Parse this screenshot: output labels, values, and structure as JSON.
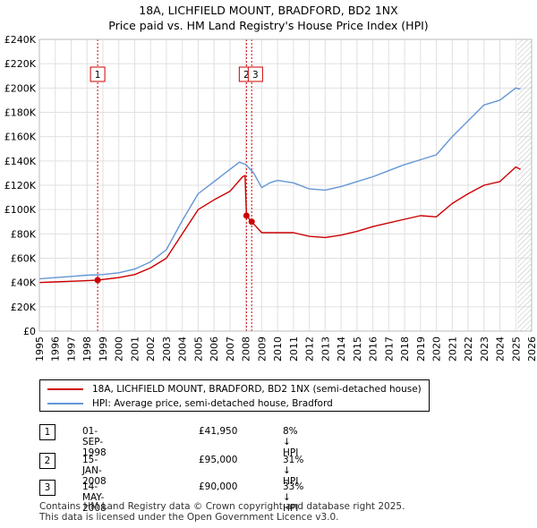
{
  "title_line1": "18A, LICHFIELD MOUNT, BRADFORD, BD2 1NX",
  "title_line2": "Price paid vs. HM Land Registry's House Price Index (HPI)",
  "colors": {
    "property": "#cc0000",
    "hpi": "#6495d6",
    "grid": "#e0e0e0",
    "hatch": "#bbbbbb",
    "marker_line": "#cc0000"
  },
  "chart_data": {
    "type": "line",
    "ylim": [
      0,
      240000
    ],
    "xlim": [
      1995,
      2026
    ],
    "y_ticks": [
      {
        "v": 0,
        "label": "£0"
      },
      {
        "v": 20000,
        "label": "£20K"
      },
      {
        "v": 40000,
        "label": "£40K"
      },
      {
        "v": 60000,
        "label": "£60K"
      },
      {
        "v": 80000,
        "label": "£80K"
      },
      {
        "v": 100000,
        "label": "£100K"
      },
      {
        "v": 120000,
        "label": "£120K"
      },
      {
        "v": 140000,
        "label": "£140K"
      },
      {
        "v": 160000,
        "label": "£160K"
      },
      {
        "v": 180000,
        "label": "£180K"
      },
      {
        "v": 200000,
        "label": "£200K"
      },
      {
        "v": 220000,
        "label": "£220K"
      },
      {
        "v": 240000,
        "label": "£240K"
      }
    ],
    "x_ticks": [
      "1995",
      "1996",
      "1997",
      "1998",
      "1999",
      "2000",
      "2001",
      "2002",
      "2003",
      "2004",
      "2005",
      "2006",
      "2007",
      "2008",
      "2009",
      "2010",
      "2011",
      "2012",
      "2013",
      "2014",
      "2015",
      "2016",
      "2017",
      "2018",
      "2019",
      "2020",
      "2021",
      "2022",
      "2023",
      "2024",
      "2025",
      "2026"
    ],
    "hatch_from": 2025.1,
    "series": [
      {
        "name": "18A, LICHFIELD MOUNT, BRADFORD, BD2 1NX (semi-detached house)",
        "color": "#cc0000",
        "points": [
          [
            1995.0,
            40000
          ],
          [
            1996.0,
            40500
          ],
          [
            1997.0,
            41000
          ],
          [
            1998.0,
            41500
          ],
          [
            1998.67,
            41950
          ],
          [
            1999.0,
            42500
          ],
          [
            2000.0,
            44000
          ],
          [
            2001.0,
            46500
          ],
          [
            2002.0,
            52000
          ],
          [
            2003.0,
            60000
          ],
          [
            2004.0,
            80000
          ],
          [
            2005.0,
            100000
          ],
          [
            2006.0,
            108000
          ],
          [
            2007.0,
            115000
          ],
          [
            2007.8,
            127000
          ],
          [
            2007.95,
            128000
          ],
          [
            2008.04,
            95000
          ],
          [
            2008.37,
            90000
          ],
          [
            2009.0,
            81000
          ],
          [
            2010.0,
            81000
          ],
          [
            2011.0,
            81000
          ],
          [
            2012.0,
            78000
          ],
          [
            2013.0,
            77000
          ],
          [
            2014.0,
            79000
          ],
          [
            2015.0,
            82000
          ],
          [
            2016.0,
            86000
          ],
          [
            2017.0,
            89000
          ],
          [
            2018.0,
            92000
          ],
          [
            2019.0,
            95000
          ],
          [
            2020.0,
            94000
          ],
          [
            2021.0,
            105000
          ],
          [
            2022.0,
            113000
          ],
          [
            2023.0,
            120000
          ],
          [
            2024.0,
            123000
          ],
          [
            2025.0,
            135000
          ],
          [
            2025.3,
            133000
          ]
        ]
      },
      {
        "name": "HPI: Average price, semi-detached house, Bradford",
        "color": "#6495d6",
        "points": [
          [
            1995.0,
            43000
          ],
          [
            1996.0,
            44000
          ],
          [
            1997.0,
            45000
          ],
          [
            1998.0,
            46000
          ],
          [
            1999.0,
            46500
          ],
          [
            2000.0,
            48000
          ],
          [
            2001.0,
            51000
          ],
          [
            2002.0,
            57000
          ],
          [
            2003.0,
            67000
          ],
          [
            2004.0,
            91000
          ],
          [
            2005.0,
            113000
          ],
          [
            2006.0,
            123000
          ],
          [
            2007.0,
            133000
          ],
          [
            2007.6,
            139000
          ],
          [
            2008.0,
            137000
          ],
          [
            2008.5,
            130000
          ],
          [
            2009.0,
            118000
          ],
          [
            2009.5,
            122000
          ],
          [
            2010.0,
            124000
          ],
          [
            2011.0,
            122000
          ],
          [
            2012.0,
            117000
          ],
          [
            2013.0,
            116000
          ],
          [
            2014.0,
            119000
          ],
          [
            2015.0,
            123000
          ],
          [
            2016.0,
            127000
          ],
          [
            2017.0,
            132000
          ],
          [
            2018.0,
            137000
          ],
          [
            2019.0,
            141000
          ],
          [
            2020.0,
            145000
          ],
          [
            2021.0,
            160000
          ],
          [
            2022.0,
            173000
          ],
          [
            2023.0,
            186000
          ],
          [
            2024.0,
            190000
          ],
          [
            2025.0,
            200000
          ],
          [
            2025.3,
            199000
          ]
        ]
      }
    ],
    "markers": [
      {
        "id": "1",
        "x": 1998.67,
        "y": 41950
      },
      {
        "id": "2",
        "x": 2008.04,
        "y": 95000
      },
      {
        "id": "3",
        "x": 2008.37,
        "y": 90000
      }
    ]
  },
  "legend": {
    "property_label": "18A, LICHFIELD MOUNT, BRADFORD, BD2 1NX (semi-detached house)",
    "hpi_label": "HPI: Average price, semi-detached house, Bradford"
  },
  "transactions": [
    {
      "num": "1",
      "date": "01-SEP-1998",
      "price": "£41,950",
      "hpi": "8% ↓ HPI"
    },
    {
      "num": "2",
      "date": "15-JAN-2008",
      "price": "£95,000",
      "hpi": "31% ↓ HPI"
    },
    {
      "num": "3",
      "date": "14-MAY-2008",
      "price": "£90,000",
      "hpi": "33% ↓ HPI"
    }
  ],
  "footer_line1": "Contains HM Land Registry data © Crown copyright and database right 2025.",
  "footer_line2": "This data is licensed under the Open Government Licence v3.0."
}
